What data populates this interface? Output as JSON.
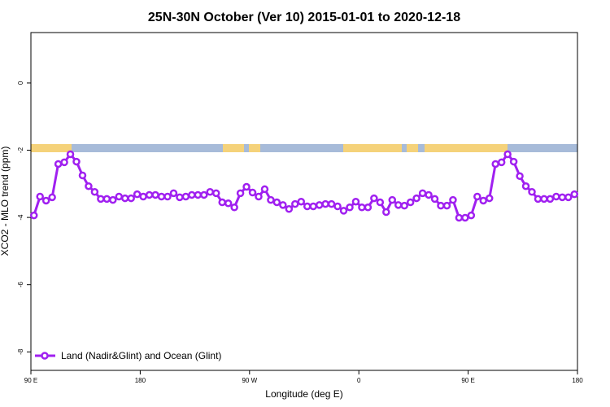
{
  "chart_data": {
    "type": "line",
    "title": "25N-30N October (Ver 10)   2015-01-01 to 2020-12-18",
    "xlabel": "Longitude (deg E)",
    "ylabel": "XCO2 - MLO trend (ppm)",
    "x": [
      92.5,
      97.5,
      102.5,
      107.5,
      112.5,
      117.5,
      122.5,
      127.5,
      132.5,
      137.5,
      142.5,
      147.5,
      152.5,
      157.5,
      162.5,
      167.5,
      172.5,
      177.5,
      182.5,
      187.5,
      192.5,
      197.5,
      202.5,
      207.5,
      212.5,
      217.5,
      222.5,
      227.5,
      232.5,
      237.5,
      242.5,
      247.5,
      252.5,
      257.5,
      262.5,
      267.5,
      272.5,
      277.5,
      282.5,
      287.5,
      292.5,
      297.5,
      302.5,
      307.5,
      312.5,
      317.5,
      322.5,
      327.5,
      332.5,
      337.5,
      342.5,
      347.5,
      352.5,
      357.5,
      362.5,
      367.5,
      372.5,
      377.5,
      382.5,
      387.5,
      392.5,
      397.5,
      402.5,
      407.5,
      412.5,
      417.5,
      422.5,
      427.5,
      432.5,
      437.5,
      442.5,
      447.5,
      452.5,
      457.5,
      462.5,
      467.5,
      472.5,
      477.5,
      482.5,
      487.5,
      492.5,
      497.5,
      502.5,
      507.5,
      512.5,
      517.5,
      522.5,
      527.5,
      532.5,
      537.5
    ],
    "series": [
      {
        "name": "Land (Nadir&Glint) and Ocean (Glint)",
        "color": "#a020f0",
        "values": [
          -3.94,
          -3.38,
          -3.5,
          -3.4,
          -2.41,
          -2.36,
          -2.12,
          -2.34,
          -2.75,
          -3.07,
          -3.24,
          -3.45,
          -3.45,
          -3.48,
          -3.38,
          -3.43,
          -3.43,
          -3.31,
          -3.38,
          -3.33,
          -3.33,
          -3.38,
          -3.38,
          -3.28,
          -3.4,
          -3.38,
          -3.33,
          -3.33,
          -3.33,
          -3.24,
          -3.28,
          -3.55,
          -3.58,
          -3.7,
          -3.28,
          -3.09,
          -3.26,
          -3.38,
          -3.16,
          -3.48,
          -3.55,
          -3.63,
          -3.75,
          -3.6,
          -3.53,
          -3.67,
          -3.67,
          -3.63,
          -3.6,
          -3.6,
          -3.67,
          -3.8,
          -3.7,
          -3.53,
          -3.7,
          -3.7,
          -3.43,
          -3.55,
          -3.84,
          -3.48,
          -3.63,
          -3.65,
          -3.55,
          -3.43,
          -3.28,
          -3.33,
          -3.45,
          -3.65,
          -3.65,
          -3.48,
          -4.01,
          -4.01,
          -3.94,
          -3.38,
          -3.5,
          -3.43,
          -2.41,
          -2.36,
          -2.12,
          -2.34,
          -2.77,
          -3.07,
          -3.24,
          -3.45,
          -3.45,
          -3.45,
          -3.38,
          -3.4,
          -3.4,
          -3.31
        ]
      }
    ],
    "xlim": [
      90,
      540
    ],
    "xticks": [
      {
        "value": 90,
        "label": "90 E"
      },
      180,
      {
        "value": 270,
        "label": "90 W"
      },
      {
        "value": 360,
        "label": "0"
      },
      {
        "value": 450,
        "label": "90 E"
      },
      {
        "value": 540,
        "label": "180"
      }
    ],
    "ylim": [
      -8.55,
      1.5
    ],
    "yticks": [
      0,
      -2,
      -4,
      -6,
      -8
    ],
    "legend": "bottom-left"
  }
}
